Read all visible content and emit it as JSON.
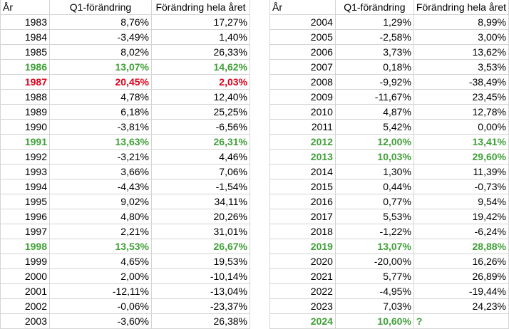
{
  "headers": {
    "year": "År",
    "q1": "Q1-förändring",
    "full": "Förändring hela året"
  },
  "colors": {
    "highlight_green": "#3fa037",
    "highlight_red": "#e0001b",
    "grid": "#d4d4d4"
  },
  "left_rows": [
    {
      "year": "1983",
      "q1": "8,76%",
      "full": "17,27%",
      "style": ""
    },
    {
      "year": "1984",
      "q1": "-3,49%",
      "full": "1,40%",
      "style": ""
    },
    {
      "year": "1985",
      "q1": "8,02%",
      "full": "26,33%",
      "style": ""
    },
    {
      "year": "1986",
      "q1": "13,07%",
      "full": "14,62%",
      "style": "green"
    },
    {
      "year": "1987",
      "q1": "20,45%",
      "full": "2,03%",
      "style": "red"
    },
    {
      "year": "1988",
      "q1": "4,78%",
      "full": "12,40%",
      "style": ""
    },
    {
      "year": "1989",
      "q1": "6,18%",
      "full": "25,25%",
      "style": ""
    },
    {
      "year": "1990",
      "q1": "-3,81%",
      "full": "-6,56%",
      "style": ""
    },
    {
      "year": "1991",
      "q1": "13,63%",
      "full": "26,31%",
      "style": "green"
    },
    {
      "year": "1992",
      "q1": "-3,21%",
      "full": "4,46%",
      "style": ""
    },
    {
      "year": "1993",
      "q1": "3,66%",
      "full": "7,06%",
      "style": ""
    },
    {
      "year": "1994",
      "q1": "-4,43%",
      "full": "-1,54%",
      "style": ""
    },
    {
      "year": "1995",
      "q1": "9,02%",
      "full": "34,11%",
      "style": ""
    },
    {
      "year": "1996",
      "q1": "4,80%",
      "full": "20,26%",
      "style": ""
    },
    {
      "year": "1997",
      "q1": "2,21%",
      "full": "31,01%",
      "style": ""
    },
    {
      "year": "1998",
      "q1": "13,53%",
      "full": "26,67%",
      "style": "green"
    },
    {
      "year": "1999",
      "q1": "4,65%",
      "full": "19,53%",
      "style": ""
    },
    {
      "year": "2000",
      "q1": "2,00%",
      "full": "-10,14%",
      "style": ""
    },
    {
      "year": "2001",
      "q1": "-12,11%",
      "full": "-13,04%",
      "style": ""
    },
    {
      "year": "2002",
      "q1": "-0,06%",
      "full": "-23,37%",
      "style": ""
    },
    {
      "year": "2003",
      "q1": "-3,60%",
      "full": "26,38%",
      "style": ""
    }
  ],
  "right_rows": [
    {
      "year": "2004",
      "q1": "1,29%",
      "full": "8,99%",
      "style": ""
    },
    {
      "year": "2005",
      "q1": "-2,58%",
      "full": "3,00%",
      "style": ""
    },
    {
      "year": "2006",
      "q1": "3,73%",
      "full": "13,62%",
      "style": ""
    },
    {
      "year": "2007",
      "q1": "0,18%",
      "full": "3,53%",
      "style": ""
    },
    {
      "year": "2008",
      "q1": "-9,92%",
      "full": "-38,49%",
      "style": ""
    },
    {
      "year": "2009",
      "q1": "-11,67%",
      "full": "23,45%",
      "style": ""
    },
    {
      "year": "2010",
      "q1": "4,87%",
      "full": "12,78%",
      "style": ""
    },
    {
      "year": "2011",
      "q1": "5,42%",
      "full": "0,00%",
      "style": ""
    },
    {
      "year": "2012",
      "q1": "12,00%",
      "full": "13,41%",
      "style": "green"
    },
    {
      "year": "2013",
      "q1": "10,03%",
      "full": "29,60%",
      "style": "green"
    },
    {
      "year": "2014",
      "q1": "1,30%",
      "full": "11,39%",
      "style": ""
    },
    {
      "year": "2015",
      "q1": "0,44%",
      "full": "-0,73%",
      "style": ""
    },
    {
      "year": "2016",
      "q1": "0,77%",
      "full": "9,54%",
      "style": ""
    },
    {
      "year": "2017",
      "q1": "5,53%",
      "full": "19,42%",
      "style": ""
    },
    {
      "year": "2018",
      "q1": "-1,22%",
      "full": "-6,24%",
      "style": ""
    },
    {
      "year": "2019",
      "q1": "13,07%",
      "full": "28,88%",
      "style": "green"
    },
    {
      "year": "2020",
      "q1": "-20,00%",
      "full": "16,26%",
      "style": ""
    },
    {
      "year": "2021",
      "q1": "5,77%",
      "full": "26,89%",
      "style": ""
    },
    {
      "year": "2022",
      "q1": "-4,95%",
      "full": "-19,44%",
      "style": ""
    },
    {
      "year": "2023",
      "q1": "7,03%",
      "full": "24,23%",
      "style": ""
    },
    {
      "year": "2024",
      "q1": "10,60%",
      "full": "?",
      "style": "green",
      "full_align": "left"
    }
  ]
}
